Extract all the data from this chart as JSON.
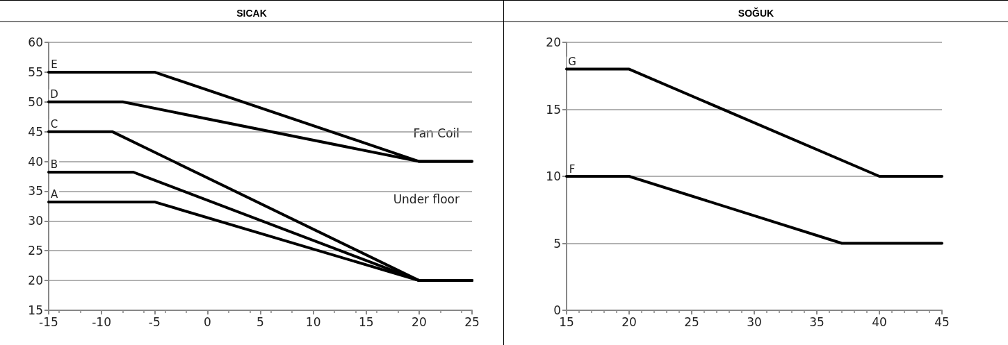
{
  "chart_data": [
    {
      "type": "line",
      "title": "SICAK",
      "xlim": [
        -15,
        25
      ],
      "xticks": [
        -15,
        -10,
        -5,
        0,
        5,
        10,
        15,
        20,
        25
      ],
      "ylim": [
        15,
        60
      ],
      "yticks": [
        15,
        20,
        25,
        30,
        35,
        40,
        45,
        50,
        55,
        60
      ],
      "grid": "y",
      "legend": false,
      "marker": "none",
      "line_style": "solid",
      "annotations": [
        "Fan Coil",
        "Under floor"
      ],
      "series": [
        {
          "name": "E",
          "color": "#000000",
          "x": [
            -15,
            -5,
            20,
            25
          ],
          "values": [
            55,
            55,
            40,
            40
          ]
        },
        {
          "name": "D",
          "color": "#000000",
          "x": [
            -15,
            -8,
            20,
            25
          ],
          "values": [
            50,
            50,
            40,
            40
          ]
        },
        {
          "name": "C",
          "color": "#000000",
          "x": [
            -15,
            -9,
            20,
            25
          ],
          "values": [
            45,
            45,
            20,
            20
          ]
        },
        {
          "name": "B",
          "color": "#000000",
          "x": [
            -15,
            -7,
            20,
            25
          ],
          "values": [
            38.2,
            38.2,
            20,
            20
          ]
        },
        {
          "name": "A",
          "color": "#000000",
          "x": [
            -15,
            -5,
            20,
            25
          ],
          "values": [
            33.2,
            33.2,
            20,
            20
          ]
        }
      ]
    },
    {
      "type": "line",
      "title": "SOĞUK",
      "xlim": [
        15,
        45
      ],
      "xticks": [
        15,
        20,
        25,
        30,
        35,
        40,
        45
      ],
      "ylim": [
        0,
        20
      ],
      "yticks": [
        0,
        5,
        10,
        15,
        20
      ],
      "grid": "y",
      "legend": false,
      "marker": "none",
      "line_style": "solid",
      "series": [
        {
          "name": "G",
          "color": "#000000",
          "x": [
            15,
            20,
            40,
            45
          ],
          "values": [
            18,
            18,
            10,
            10
          ]
        },
        {
          "name": "F",
          "color": "#000000",
          "x": [
            15,
            20,
            37,
            45
          ],
          "values": [
            10,
            10,
            5,
            5
          ]
        }
      ]
    }
  ]
}
